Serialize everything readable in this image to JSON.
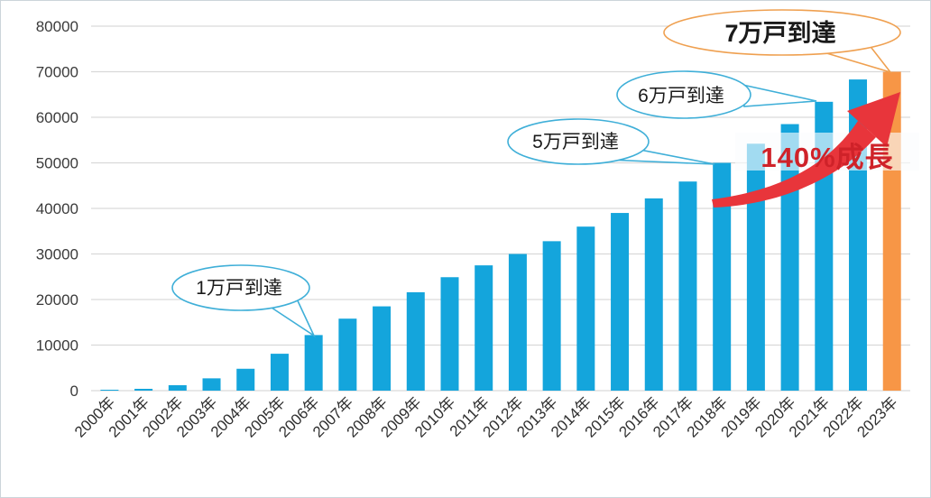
{
  "chart_data": {
    "type": "bar",
    "title": "",
    "xlabel": "",
    "ylabel": "",
    "categories": [
      "2000年",
      "2001年",
      "2002年",
      "2003年",
      "2004年",
      "2005年",
      "2006年",
      "2007年",
      "2008年",
      "2009年",
      "2010年",
      "2011年",
      "2012年",
      "2013年",
      "2014年",
      "2015年",
      "2016年",
      "2017年",
      "2018年",
      "2019年",
      "2020年",
      "2021年",
      "2022年",
      "2023年"
    ],
    "values": [
      100,
      400,
      1200,
      2700,
      4800,
      8100,
      12200,
      15800,
      18500,
      21600,
      24900,
      27500,
      30000,
      32800,
      36000,
      39000,
      42200,
      45900,
      50000,
      54200,
      58500,
      63400,
      68300,
      70000
    ],
    "ylim": [
      0,
      80000
    ],
    "ytick_values": [
      0,
      10000,
      20000,
      30000,
      40000,
      50000,
      60000,
      70000,
      80000
    ],
    "ytick_labels": [
      "0",
      "10000",
      "20000",
      "30000",
      "40000",
      "50000",
      "60000",
      "70000",
      "80000"
    ],
    "grid": true,
    "legend": "none",
    "bar_color_default": "#14a5dc",
    "bar_color_highlight": "#f79646",
    "highlight_index": 23,
    "annotations": {
      "bubbles": [
        {
          "label": "1万戸到達",
          "target_year": "2006年",
          "outline_color": "#3fafd8",
          "text_color": "#1a1a1a"
        },
        {
          "label": "5万戸到達",
          "target_year": "2018年",
          "outline_color": "#3fafd8",
          "text_color": "#1a1a1a"
        },
        {
          "label": "6万戸到達",
          "target_year": "2021年",
          "outline_color": "#3fafd8",
          "text_color": "#1a1a1a"
        },
        {
          "label": "7万戸到達",
          "target_year": "2023年",
          "outline_color": "#efa050",
          "text_color": "#e78b3e"
        }
      ],
      "growth_label": {
        "text": "140%成長",
        "color": "#cf2229"
      },
      "arrow_color": "#e8353b"
    }
  }
}
